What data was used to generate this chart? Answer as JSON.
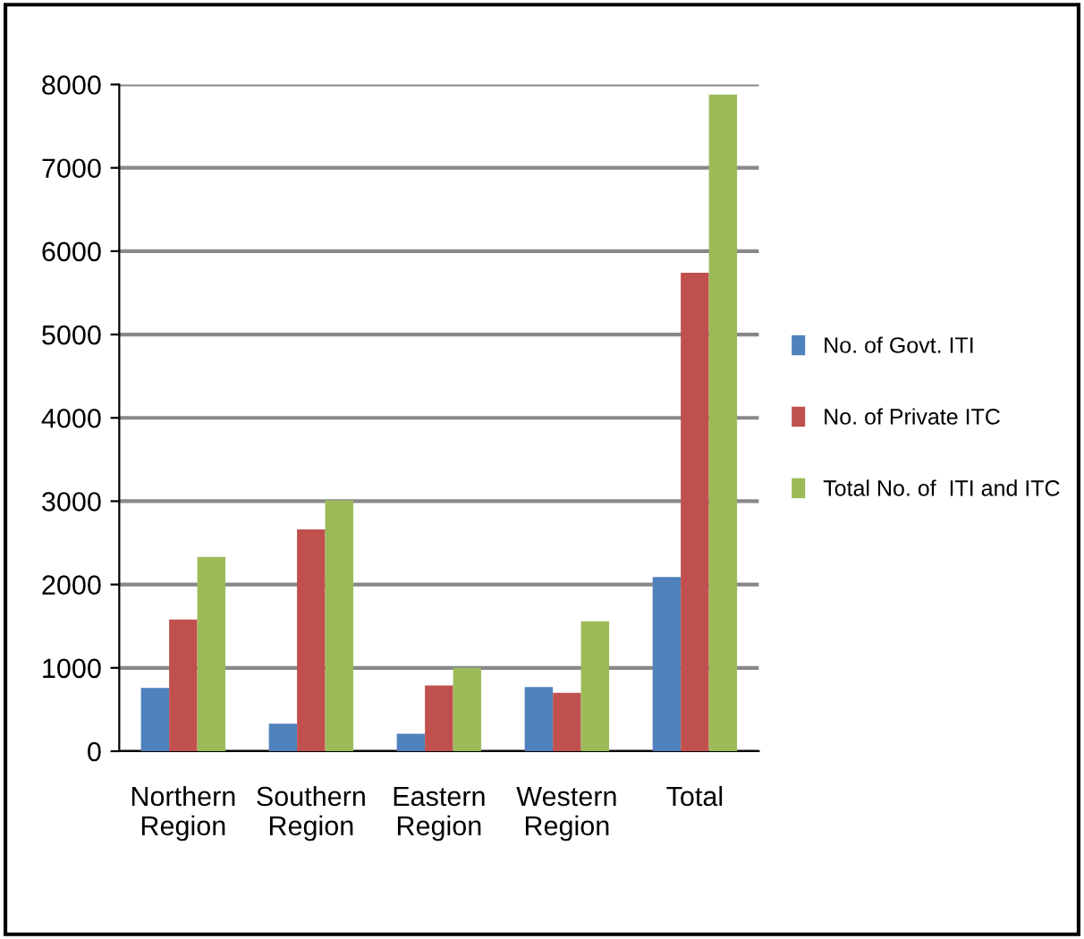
{
  "chart_data": {
    "type": "bar",
    "categories": [
      "Northern\nRegion",
      "Southern\nRegion",
      "Eastern\nRegion",
      "Western\nRegion",
      "Total"
    ],
    "series": [
      {
        "name": "No. of Govt. ITI",
        "color": "#4f81bd",
        "values": [
          760,
          330,
          210,
          770,
          2090
        ]
      },
      {
        "name": "No. of Private ITC",
        "color": "#c0504d",
        "values": [
          1580,
          2660,
          790,
          700,
          5740
        ]
      },
      {
        "name": "Total No. of  ITI and ITC",
        "color": "#9bbb59",
        "values": [
          2330,
          3010,
          1000,
          1560,
          7880
        ]
      }
    ],
    "ylim": [
      0,
      8000
    ],
    "yticks": [
      0,
      1000,
      2000,
      3000,
      4000,
      5000,
      6000,
      7000,
      8000
    ],
    "grid": "y",
    "legend": "right"
  }
}
